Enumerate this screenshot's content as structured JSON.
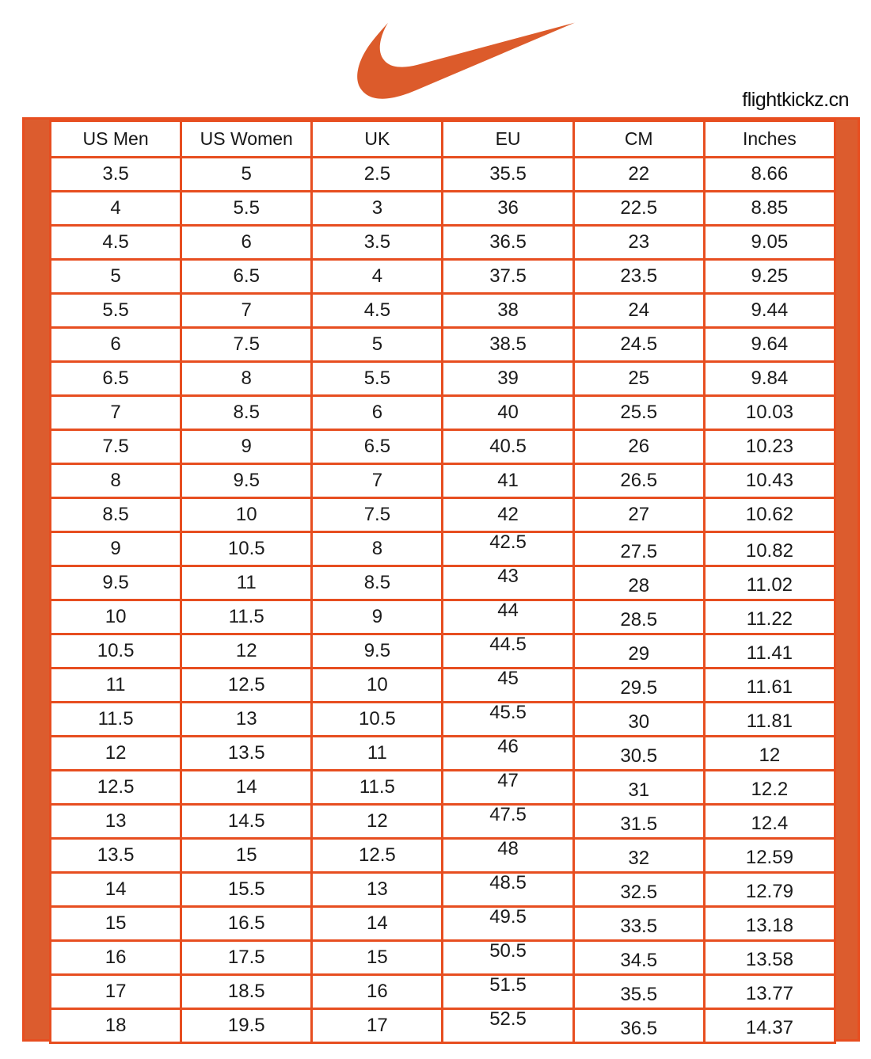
{
  "colors": {
    "accent_fill_orange": "#DC5C2E",
    "border_orange": "#E74E20",
    "text_dark": "#1b1b1b"
  },
  "header": {
    "logo_icon": "nike-swoosh-icon",
    "site_label": "flightkickz.cn"
  },
  "chart_data": {
    "type": "table",
    "title": "Nike shoe size conversion chart",
    "columns": [
      "US Men",
      "US Women",
      "UK",
      "EU",
      "CM",
      "Inches"
    ],
    "rows": [
      [
        "3.5",
        "5",
        "2.5",
        "35.5",
        "22",
        "8.66"
      ],
      [
        "4",
        "5.5",
        "3",
        "36",
        "22.5",
        "8.85"
      ],
      [
        "4.5",
        "6",
        "3.5",
        "36.5",
        "23",
        "9.05"
      ],
      [
        "5",
        "6.5",
        "4",
        "37.5",
        "23.5",
        "9.25"
      ],
      [
        "5.5",
        "7",
        "4.5",
        "38",
        "24",
        "9.44"
      ],
      [
        "6",
        "7.5",
        "5",
        "38.5",
        "24.5",
        "9.64"
      ],
      [
        "6.5",
        "8",
        "5.5",
        "39",
        "25",
        "9.84"
      ],
      [
        "7",
        "8.5",
        "6",
        "40",
        "25.5",
        "10.03"
      ],
      [
        "7.5",
        "9",
        "6.5",
        "40.5",
        "26",
        "10.23"
      ],
      [
        "8",
        "9.5",
        "7",
        "41",
        "26.5",
        "10.43"
      ],
      [
        "8.5",
        "10",
        "7.5",
        "42",
        "27",
        "10.62"
      ],
      [
        "9",
        "10.5",
        "8",
        "42.5",
        "27.5",
        "10.82"
      ],
      [
        "9.5",
        "11",
        "8.5",
        "43",
        "28",
        "11.02"
      ],
      [
        "10",
        "11.5",
        "9",
        "44",
        "28.5",
        "11.22"
      ],
      [
        "10.5",
        "12",
        "9.5",
        "44.5",
        "29",
        "11.41"
      ],
      [
        "11",
        "12.5",
        "10",
        "45",
        "29.5",
        "11.61"
      ],
      [
        "11.5",
        "13",
        "10.5",
        "45.5",
        "30",
        "11.81"
      ],
      [
        "12",
        "13.5",
        "11",
        "46",
        "30.5",
        "12"
      ],
      [
        "12.5",
        "14",
        "11.5",
        "47",
        "31",
        "12.2"
      ],
      [
        "13",
        "14.5",
        "12",
        "47.5",
        "31.5",
        "12.4"
      ],
      [
        "13.5",
        "15",
        "12.5",
        "48",
        "32",
        "12.59"
      ],
      [
        "14",
        "15.5",
        "13",
        "48.5",
        "32.5",
        "12.79"
      ],
      [
        "15",
        "16.5",
        "14",
        "49.5",
        "33.5",
        "13.18"
      ],
      [
        "16",
        "17.5",
        "15",
        "50.5",
        "34.5",
        "13.58"
      ],
      [
        "17",
        "18.5",
        "16",
        "51.5",
        "35.5",
        "13.77"
      ],
      [
        "18",
        "19.5",
        "17",
        "52.5",
        "36.5",
        "14.37"
      ]
    ]
  }
}
